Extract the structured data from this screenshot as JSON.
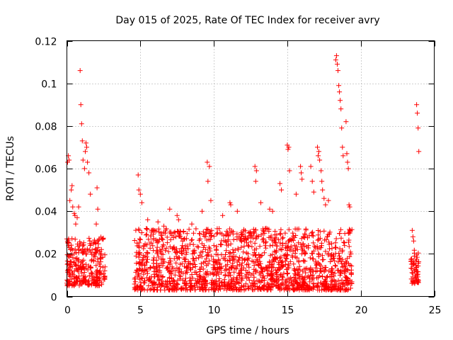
{
  "chart_data": {
    "type": "scatter",
    "title": "Day 015 of 2025, Rate Of TEC Index for receiver avry",
    "xlabel": "GPS time / hours",
    "ylabel": "ROTI / TECUs",
    "xlim": [
      0,
      25
    ],
    "ylim": [
      0,
      0.12
    ],
    "xticks": [
      0,
      5,
      10,
      15,
      20,
      25
    ],
    "xtick_labels": [
      "0",
      "5",
      "10",
      "15",
      "20",
      "25"
    ],
    "yticks": [
      0,
      0.02,
      0.04,
      0.06,
      0.08,
      0.1,
      0.12
    ],
    "ytick_labels": [
      "0",
      "0.02",
      "0.04",
      "0.06",
      "0.08",
      "0.1",
      "0.12"
    ],
    "grid": true,
    "marker": "+",
    "color": "#ff0000",
    "coverage": [
      {
        "start": 0.0,
        "end": 2.6,
        "y_low": 0.005,
        "y_high": 0.028
      },
      {
        "start": 4.6,
        "end": 19.4,
        "y_low": 0.003,
        "y_high": 0.032
      },
      {
        "start": 23.4,
        "end": 23.95,
        "y_low": 0.006,
        "y_high": 0.022
      }
    ],
    "series": [
      {
        "name": "ROTI",
        "x": [
          0.05,
          0.1,
          0.15,
          0.2,
          0.3,
          0.35,
          0.4,
          0.5,
          0.55,
          0.6,
          0.7,
          0.8,
          0.9,
          0.95,
          1.0,
          1.05,
          1.1,
          1.2,
          1.25,
          1.3,
          1.35,
          1.4,
          1.5,
          1.6,
          2.0,
          2.05,
          2.1,
          2.4,
          4.85,
          4.9,
          5.0,
          5.1,
          5.5,
          6.2,
          6.6,
          7.0,
          7.5,
          7.6,
          8.5,
          9.2,
          9.55,
          9.6,
          9.7,
          9.8,
          10.6,
          11.1,
          11.15,
          11.6,
          12.8,
          12.85,
          12.9,
          13.2,
          13.8,
          14.0,
          14.5,
          14.6,
          15.0,
          15.05,
          15.1,
          15.15,
          15.6,
          15.9,
          15.95,
          16.0,
          16.6,
          16.7,
          16.8,
          17.05,
          17.1,
          17.15,
          17.2,
          17.3,
          17.35,
          17.4,
          17.5,
          17.6,
          17.8,
          18.3,
          18.35,
          18.4,
          18.45,
          18.5,
          18.55,
          18.6,
          18.65,
          18.7,
          18.75,
          18.8,
          19.0,
          19.05,
          19.1,
          19.15,
          19.2,
          19.25,
          23.5,
          23.55,
          23.6,
          23.8,
          23.85,
          23.9,
          23.95
        ],
        "y": [
          0.063,
          0.066,
          0.064,
          0.045,
          0.05,
          0.052,
          0.042,
          0.039,
          0.038,
          0.034,
          0.037,
          0.042,
          0.106,
          0.09,
          0.081,
          0.073,
          0.064,
          0.06,
          0.068,
          0.072,
          0.07,
          0.063,
          0.058,
          0.048,
          0.034,
          0.051,
          0.041,
          0.027,
          0.057,
          0.05,
          0.048,
          0.044,
          0.036,
          0.035,
          0.033,
          0.041,
          0.038,
          0.036,
          0.034,
          0.04,
          0.063,
          0.054,
          0.061,
          0.045,
          0.038,
          0.044,
          0.043,
          0.04,
          0.061,
          0.054,
          0.059,
          0.044,
          0.041,
          0.04,
          0.053,
          0.05,
          0.071,
          0.069,
          0.07,
          0.059,
          0.048,
          0.061,
          0.058,
          0.055,
          0.061,
          0.054,
          0.049,
          0.07,
          0.066,
          0.068,
          0.064,
          0.059,
          0.054,
          0.05,
          0.046,
          0.043,
          0.045,
          0.111,
          0.113,
          0.109,
          0.106,
          0.099,
          0.096,
          0.092,
          0.088,
          0.079,
          0.07,
          0.066,
          0.082,
          0.067,
          0.063,
          0.06,
          0.043,
          0.042,
          0.031,
          0.028,
          0.026,
          0.09,
          0.086,
          0.079,
          0.068
        ]
      }
    ]
  }
}
